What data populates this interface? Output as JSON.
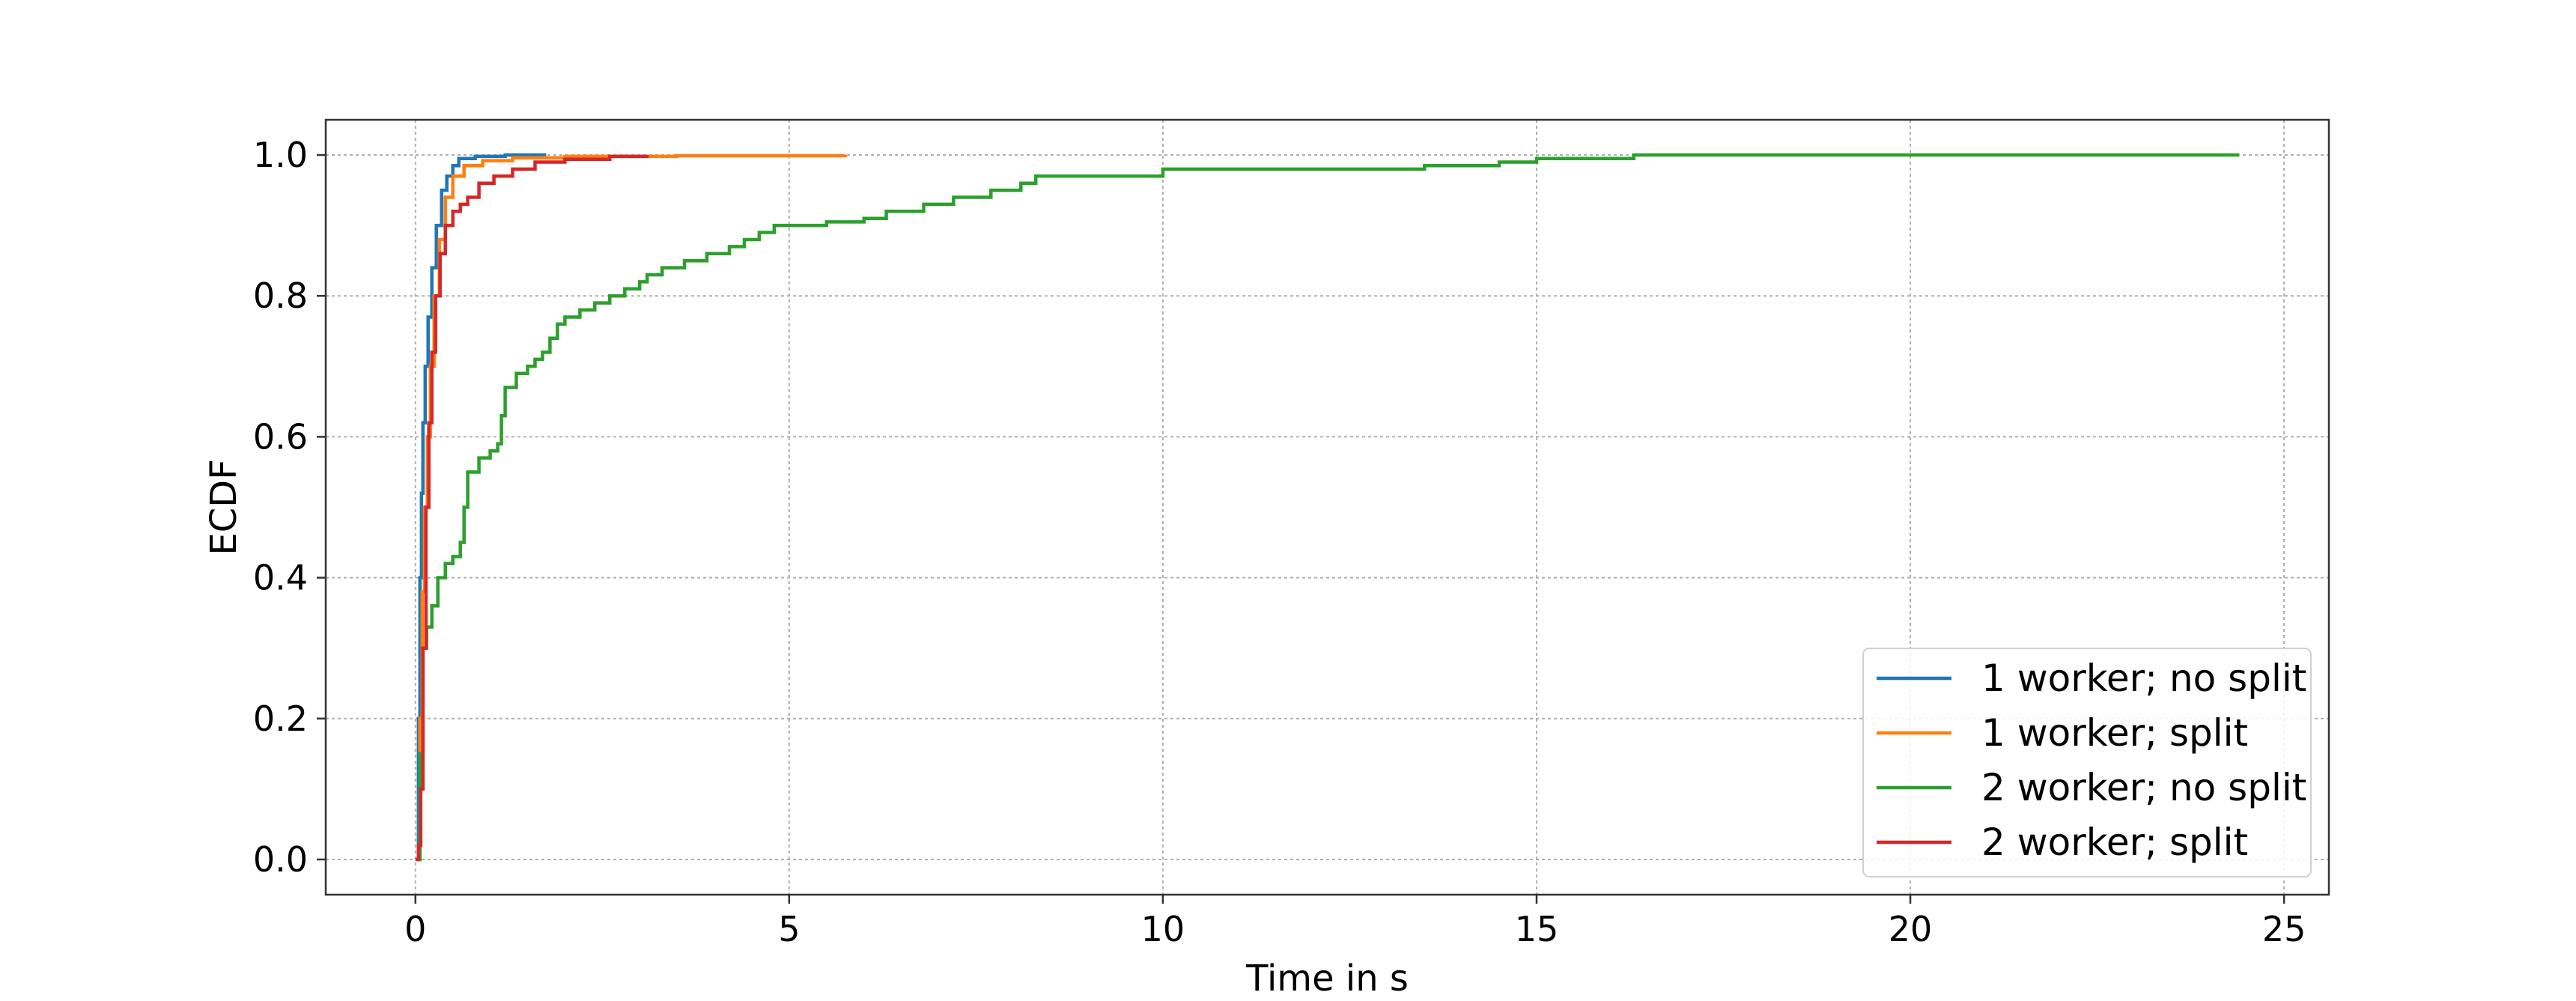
{
  "chart_data": {
    "type": "line",
    "title": "",
    "xlabel": "Time in s",
    "ylabel": "ECDF",
    "xlim": [
      -1.2,
      25.6
    ],
    "ylim": [
      -0.05,
      1.05
    ],
    "xticks": [
      0,
      5,
      10,
      15,
      20,
      25
    ],
    "xtick_labels": [
      "0",
      "5",
      "10",
      "15",
      "20",
      "25"
    ],
    "yticks": [
      0.0,
      0.2,
      0.4,
      0.6,
      0.8,
      1.0
    ],
    "ytick_labels": [
      "0.0",
      "0.2",
      "0.4",
      "0.6",
      "0.8",
      "1.0"
    ],
    "grid": true,
    "legend_position": "lower-right",
    "series": [
      {
        "name": "1 worker; no split",
        "color": "#1f77b4",
        "points": [
          [
            0.02,
            0.0
          ],
          [
            0.04,
            0.2
          ],
          [
            0.06,
            0.4
          ],
          [
            0.08,
            0.52
          ],
          [
            0.1,
            0.62
          ],
          [
            0.13,
            0.7
          ],
          [
            0.17,
            0.77
          ],
          [
            0.22,
            0.84
          ],
          [
            0.28,
            0.9
          ],
          [
            0.35,
            0.95
          ],
          [
            0.42,
            0.97
          ],
          [
            0.5,
            0.985
          ],
          [
            0.58,
            0.995
          ],
          [
            0.8,
            0.998
          ],
          [
            1.2,
            1.0
          ],
          [
            1.75,
            1.0
          ]
        ]
      },
      {
        "name": "1 worker; split",
        "color": "#ff7f0e",
        "points": [
          [
            0.03,
            0.0
          ],
          [
            0.06,
            0.2
          ],
          [
            0.09,
            0.38
          ],
          [
            0.12,
            0.5
          ],
          [
            0.16,
            0.6
          ],
          [
            0.2,
            0.7
          ],
          [
            0.25,
            0.8
          ],
          [
            0.32,
            0.88
          ],
          [
            0.4,
            0.94
          ],
          [
            0.5,
            0.97
          ],
          [
            0.65,
            0.985
          ],
          [
            0.9,
            0.992
          ],
          [
            1.3,
            0.996
          ],
          [
            2.0,
            0.998
          ],
          [
            3.5,
            0.999
          ],
          [
            5.75,
            1.0
          ]
        ]
      },
      {
        "name": "2 worker; no split",
        "color": "#2ca02c",
        "points": [
          [
            0.02,
            0.0
          ],
          [
            0.06,
            0.15
          ],
          [
            0.1,
            0.3
          ],
          [
            0.15,
            0.33
          ],
          [
            0.22,
            0.36
          ],
          [
            0.3,
            0.4
          ],
          [
            0.4,
            0.42
          ],
          [
            0.5,
            0.43
          ],
          [
            0.6,
            0.45
          ],
          [
            0.65,
            0.5
          ],
          [
            0.7,
            0.55
          ],
          [
            0.85,
            0.57
          ],
          [
            1.0,
            0.58
          ],
          [
            1.1,
            0.59
          ],
          [
            1.15,
            0.63
          ],
          [
            1.2,
            0.67
          ],
          [
            1.35,
            0.69
          ],
          [
            1.5,
            0.7
          ],
          [
            1.6,
            0.71
          ],
          [
            1.7,
            0.72
          ],
          [
            1.8,
            0.74
          ],
          [
            1.9,
            0.76
          ],
          [
            2.0,
            0.77
          ],
          [
            2.2,
            0.78
          ],
          [
            2.4,
            0.79
          ],
          [
            2.6,
            0.8
          ],
          [
            2.8,
            0.81
          ],
          [
            3.0,
            0.82
          ],
          [
            3.1,
            0.83
          ],
          [
            3.3,
            0.84
          ],
          [
            3.6,
            0.85
          ],
          [
            3.9,
            0.86
          ],
          [
            4.2,
            0.87
          ],
          [
            4.4,
            0.88
          ],
          [
            4.6,
            0.89
          ],
          [
            4.8,
            0.9
          ],
          [
            5.5,
            0.905
          ],
          [
            6.0,
            0.91
          ],
          [
            6.3,
            0.92
          ],
          [
            6.8,
            0.93
          ],
          [
            7.2,
            0.94
          ],
          [
            7.7,
            0.95
          ],
          [
            8.1,
            0.96
          ],
          [
            8.3,
            0.97
          ],
          [
            9.0,
            0.97
          ],
          [
            10.0,
            0.98
          ],
          [
            13.5,
            0.985
          ],
          [
            14.5,
            0.99
          ],
          [
            15.0,
            0.995
          ],
          [
            16.3,
            1.0
          ],
          [
            24.4,
            1.0
          ]
        ]
      },
      {
        "name": "2 worker; split",
        "color": "#d62728",
        "points": [
          [
            0.0,
            0.0
          ],
          [
            0.04,
            0.02
          ],
          [
            0.07,
            0.1
          ],
          [
            0.1,
            0.3
          ],
          [
            0.14,
            0.5
          ],
          [
            0.18,
            0.62
          ],
          [
            0.22,
            0.72
          ],
          [
            0.27,
            0.8
          ],
          [
            0.33,
            0.86
          ],
          [
            0.4,
            0.9
          ],
          [
            0.5,
            0.92
          ],
          [
            0.6,
            0.93
          ],
          [
            0.7,
            0.94
          ],
          [
            0.85,
            0.96
          ],
          [
            1.05,
            0.97
          ],
          [
            1.3,
            0.98
          ],
          [
            1.6,
            0.99
          ],
          [
            2.0,
            0.994
          ],
          [
            2.6,
            0.998
          ],
          [
            3.1,
            1.0
          ]
        ]
      }
    ]
  }
}
